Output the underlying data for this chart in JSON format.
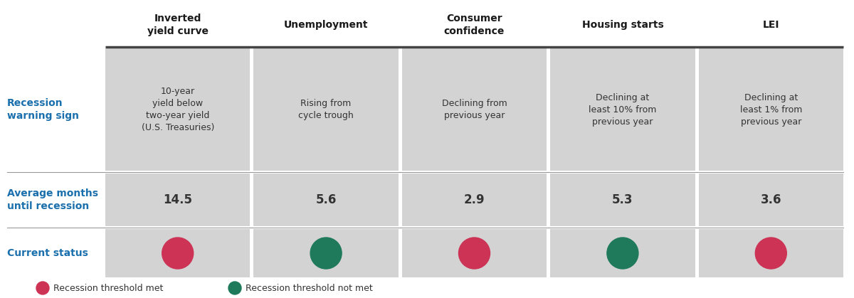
{
  "bg_color": "#ffffff",
  "cell_bg": "#d3d3d3",
  "row_label_color": "#1a6fad",
  "header_text_color": "#1a1a1a",
  "cell_text_color": "#333333",
  "divider_color": "#444444",
  "thin_divider_color": "#999999",
  "red_circle": "#cc3355",
  "green_circle": "#1f7a5c",
  "col_headers": [
    "Inverted\nyield curve",
    "Unemployment",
    "Consumer\nconfidence",
    "Housing starts",
    "LEI"
  ],
  "row_labels": [
    "Recession\nwarning sign",
    "Average months\nuntil recession",
    "Current status"
  ],
  "warning_signs": [
    "10-year\nyield below\ntwo-year yield\n(U.S. Treasuries)",
    "Rising from\ncycle trough",
    "Declining from\nprevious year",
    "Declining at\nleast 10% from\nprevious year",
    "Declining at\nleast 1% from\nprevious year"
  ],
  "avg_months": [
    "14.5",
    "5.6",
    "2.9",
    "5.3",
    "3.6"
  ],
  "status": [
    "met",
    "not_met",
    "met",
    "not_met",
    "met"
  ],
  "legend_met_label": "Recession threshold met",
  "legend_not_met_label": "Recession threshold not met",
  "fig_width": 12.0,
  "fig_height": 4.19,
  "dpi": 100
}
